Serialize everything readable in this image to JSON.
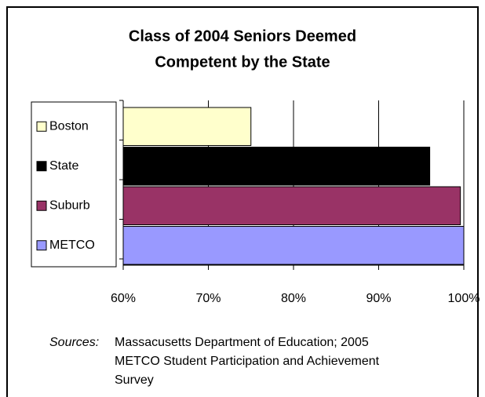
{
  "chart_data": {
    "type": "bar",
    "orientation": "horizontal",
    "title": [
      "Class of 2004 Seniors Deemed",
      "Competent by the State"
    ],
    "series": [
      {
        "name": "Boston",
        "color": "#ffffcc",
        "values": [
          75
        ]
      },
      {
        "name": "State",
        "color": "#000000",
        "values": [
          96
        ]
      },
      {
        "name": "Suburb",
        "color": "#993366",
        "values": [
          99.6
        ]
      },
      {
        "name": "METCO",
        "color": "#9999ff",
        "values": [
          100
        ]
      }
    ],
    "xlim": [
      60,
      100
    ],
    "xticks": [
      {
        "value": 60,
        "label": "60%"
      },
      {
        "value": 70,
        "label": "70%"
      },
      {
        "value": 80,
        "label": "80%"
      },
      {
        "value": 90,
        "label": "90%"
      },
      {
        "value": 100,
        "label": "100%"
      }
    ],
    "grid": true,
    "legend": "left",
    "source_label": "Sources:",
    "source_text": [
      "Massacusetts Department of Education; 2005",
      "METCO Student Participation and Achievement",
      "Survey"
    ]
  }
}
